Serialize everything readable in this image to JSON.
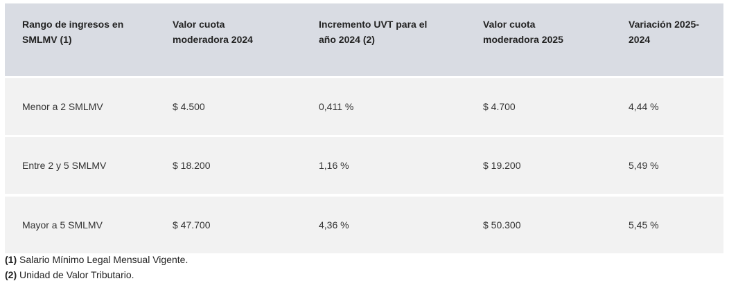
{
  "table": {
    "header": [
      "Rango de ingresos en SMLMV (1)",
      "Valor cuota moderadora 2024",
      "Incremento UVT para el año 2024 (2)",
      "Valor cuota moderadora 2025",
      "Variación 2025-2024"
    ],
    "rows": [
      [
        "Menor a 2 SMLMV",
        "$ 4.500",
        "0,411 %",
        "$ 4.700",
        "4,44 %"
      ],
      [
        "Entre 2 y 5 SMLMV",
        "$ 18.200",
        "1,16 %",
        "$ 19.200",
        "5,49 %"
      ],
      [
        "Mayor a 5 SMLMV",
        "$ 47.700",
        "4,36 %",
        "$ 50.300",
        "5,45 %"
      ]
    ]
  },
  "footnotes": [
    {
      "marker": "(1)",
      "text": "Salario Mínimo Legal Mensual Vigente."
    },
    {
      "marker": "(2)",
      "text": "Unidad de Valor Tributario."
    }
  ]
}
